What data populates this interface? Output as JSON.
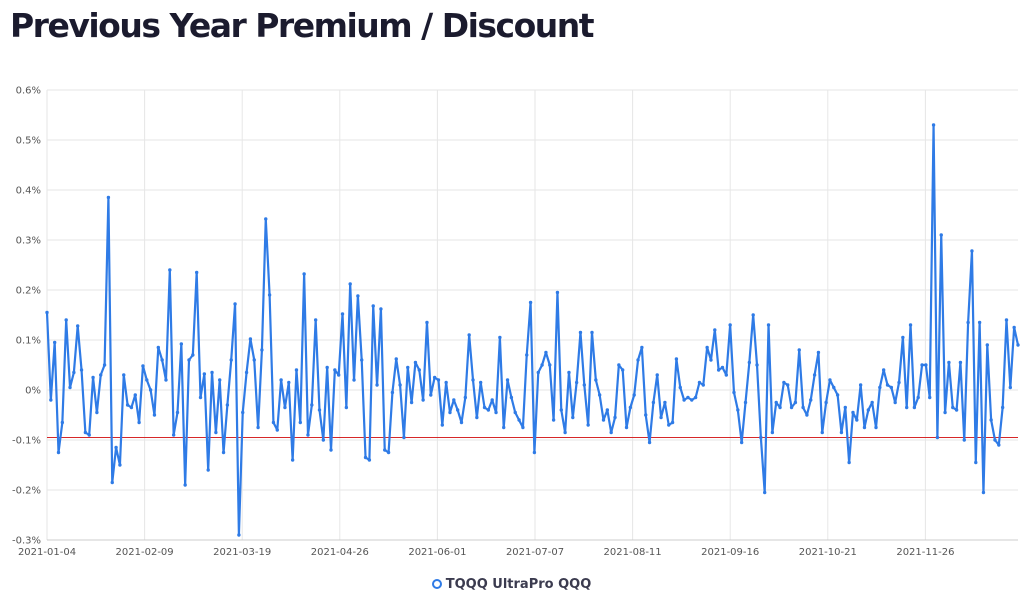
{
  "page_title": "Previous Year Premium / Discount",
  "legend": {
    "label": "TQQQ UltraPro QQQ",
    "color": "#2f7be6"
  },
  "chart_data": {
    "type": "line",
    "title": "Previous Year Premium / Discount",
    "xlabel": "",
    "ylabel": "",
    "ylim": [
      -0.3,
      0.6
    ],
    "yticks": [
      "-0.3%",
      "-0.2%",
      "-0.1%",
      "0%",
      "0.1%",
      "0.2%",
      "0.3%",
      "0.4%",
      "0.5%",
      "0.6%"
    ],
    "xticks": [
      "2021-01-04",
      "2021-02-09",
      "2021-03-19",
      "2021-04-26",
      "2021-06-01",
      "2021-07-07",
      "2021-08-11",
      "2021-09-16",
      "2021-10-21",
      "2021-11-26"
    ],
    "grid": true,
    "legend_position": "bottom",
    "reference_line": {
      "value": -0.095,
      "color": "#d62728"
    },
    "series": [
      {
        "name": "TQQQ UltraPro QQQ",
        "color": "#2f7be6",
        "values": [
          0.155,
          -0.02,
          0.095,
          -0.125,
          -0.065,
          0.14,
          0.005,
          0.035,
          0.128,
          0.04,
          -0.085,
          -0.09,
          0.025,
          -0.045,
          0.03,
          0.05,
          0.385,
          -0.185,
          -0.115,
          -0.15,
          0.03,
          -0.03,
          -0.035,
          -0.01,
          -0.065,
          0.048,
          0.02,
          0.0,
          -0.05,
          0.085,
          0.06,
          0.02,
          0.24,
          -0.09,
          -0.045,
          0.092,
          -0.19,
          0.06,
          0.07,
          0.235,
          -0.015,
          0.032,
          -0.16,
          0.035,
          -0.085,
          0.02,
          -0.125,
          -0.03,
          0.06,
          0.172,
          -0.29,
          -0.045,
          0.035,
          0.102,
          0.06,
          -0.075,
          0.08,
          0.342,
          0.19,
          -0.065,
          -0.08,
          0.02,
          -0.035,
          0.015,
          -0.14,
          0.04,
          -0.065,
          0.232,
          -0.09,
          -0.03,
          0.14,
          -0.04,
          -0.1,
          0.045,
          -0.12,
          0.04,
          0.03,
          0.152,
          -0.035,
          0.212,
          0.02,
          0.188,
          0.06,
          -0.135,
          -0.14,
          0.168,
          0.01,
          0.162,
          -0.12,
          -0.125,
          -0.005,
          0.062,
          0.01,
          -0.095,
          0.045,
          -0.025,
          0.055,
          0.04,
          -0.02,
          0.135,
          -0.01,
          0.025,
          0.02,
          -0.07,
          0.015,
          -0.045,
          -0.02,
          -0.04,
          -0.065,
          -0.015,
          0.11,
          0.02,
          -0.055,
          0.015,
          -0.035,
          -0.04,
          -0.02,
          -0.045,
          0.105,
          -0.075,
          0.02,
          -0.015,
          -0.045,
          -0.06,
          -0.075,
          0.07,
          0.175,
          -0.125,
          0.035,
          0.05,
          0.075,
          0.05,
          -0.06,
          0.195,
          -0.04,
          -0.085,
          0.035,
          -0.055,
          0.015,
          0.115,
          0.01,
          -0.07,
          0.115,
          0.02,
          -0.01,
          -0.06,
          -0.04,
          -0.085,
          -0.055,
          0.05,
          0.04,
          -0.075,
          -0.035,
          -0.01,
          0.06,
          0.085,
          -0.05,
          -0.105,
          -0.025,
          0.03,
          -0.055,
          -0.025,
          -0.07,
          -0.065,
          0.062,
          0.005,
          -0.02,
          -0.015,
          -0.02,
          -0.015,
          0.015,
          0.01,
          0.085,
          0.06,
          0.12,
          0.04,
          0.045,
          0.03,
          0.13,
          -0.005,
          -0.04,
          -0.105,
          -0.025,
          0.055,
          0.15,
          0.05,
          -0.095,
          -0.205,
          0.13,
          -0.085,
          -0.025,
          -0.035,
          0.015,
          0.01,
          -0.035,
          -0.025,
          0.08,
          -0.035,
          -0.05,
          -0.02,
          0.03,
          0.075,
          -0.085,
          -0.025,
          0.02,
          0.005,
          -0.01,
          -0.085,
          -0.035,
          -0.145,
          -0.045,
          -0.06,
          0.01,
          -0.075,
          -0.04,
          -0.025,
          -0.075,
          0.005,
          0.04,
          0.01,
          0.005,
          -0.025,
          0.015,
          0.105,
          -0.035,
          0.13,
          -0.035,
          -0.015,
          0.05,
          0.05,
          -0.015,
          0.53,
          -0.095,
          0.31,
          -0.045,
          0.055,
          -0.035,
          -0.04,
          0.055,
          -0.1,
          0.135,
          0.278,
          -0.145,
          0.135,
          -0.205,
          0.09,
          -0.06,
          -0.1,
          -0.11,
          -0.035,
          0.14,
          0.005,
          0.125,
          0.09
        ]
      }
    ]
  }
}
